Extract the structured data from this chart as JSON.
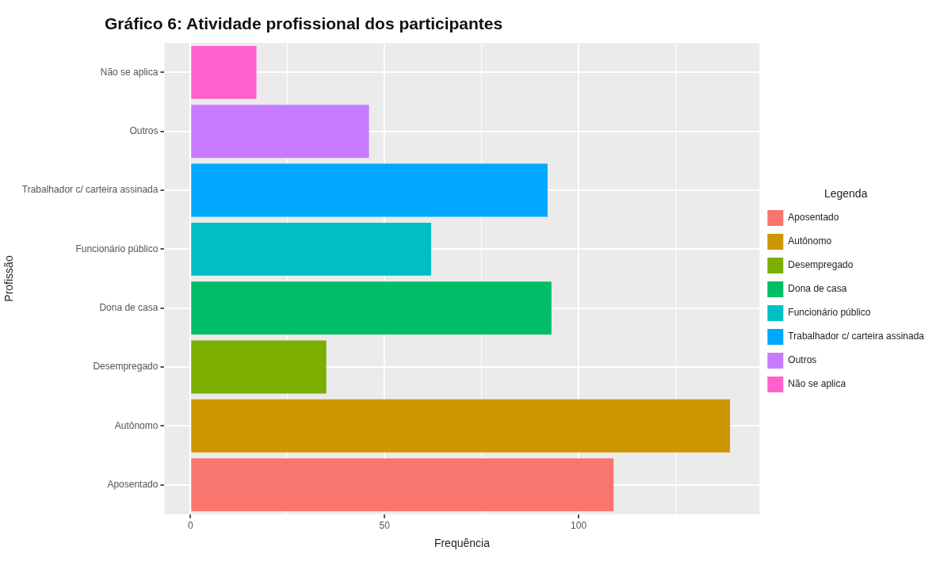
{
  "chart_data": {
    "type": "bar",
    "orientation": "horizontal",
    "title": "Gráfico 6: Atividade profissional dos participantes",
    "xlabel": "Frequência",
    "ylabel": "Profissão",
    "legend_title": "Legenda",
    "legend": "right",
    "categories": [
      "Não se aplica",
      "Outros",
      "Trabalhador c/ carteira assinada",
      "Funcionário público",
      "Dona de casa",
      "Desempregado",
      "Autônomo",
      "Aposentado"
    ],
    "series": [
      {
        "name": "Aposentado",
        "color": "#f8766d",
        "values": [
          null,
          null,
          null,
          null,
          null,
          null,
          null,
          109
        ]
      },
      {
        "name": "Autônomo",
        "color": "#cd9600",
        "values": [
          null,
          null,
          null,
          null,
          null,
          null,
          139,
          null
        ]
      },
      {
        "name": "Desempregado",
        "color": "#7cae00",
        "values": [
          null,
          null,
          null,
          null,
          null,
          35,
          null,
          null
        ]
      },
      {
        "name": "Dona de casa",
        "color": "#00be67",
        "values": [
          null,
          null,
          null,
          null,
          93,
          null,
          null,
          null
        ]
      },
      {
        "name": "Funcionário público",
        "color": "#00bfc4",
        "values": [
          null,
          null,
          null,
          62,
          null,
          null,
          null,
          null
        ]
      },
      {
        "name": "Trabalhador c/ carteira assinada",
        "color": "#00a9ff",
        "values": [
          null,
          null,
          92,
          null,
          null,
          null,
          null,
          null
        ]
      },
      {
        "name": "Outros",
        "color": "#c77cff",
        "values": [
          null,
          46,
          null,
          null,
          null,
          null,
          null,
          null
        ]
      },
      {
        "name": "Não se aplica",
        "color": "#ff61cc",
        "values": [
          17,
          null,
          null,
          null,
          null,
          null,
          null,
          null
        ]
      }
    ],
    "xlim": [
      -6.7,
      146.6
    ],
    "xticks": [
      0,
      {
        "value": 25,
        "label": null
      },
      50,
      {
        "value": 75,
        "label": null
      },
      100,
      {
        "value": 125,
        "label": null
      }
    ],
    "grid": true
  }
}
